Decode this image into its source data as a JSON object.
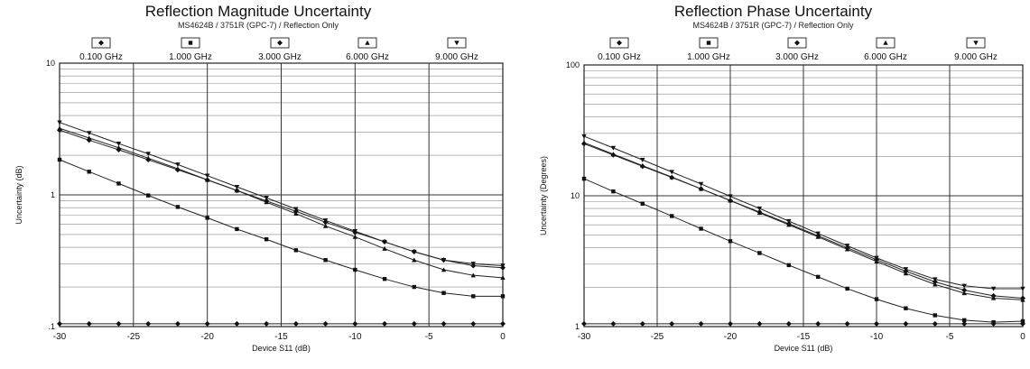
{
  "chart_data": [
    {
      "type": "line",
      "title": "Reflection Magnitude Uncertainty",
      "subtitle": "MS4624B / 3751R (GPC-7) / Reflection Only",
      "xlabel": "Device S11 (dB)",
      "ylabel": "Uncertainty (dB)",
      "xlim": [
        -30,
        0
      ],
      "ylim": [
        0.1,
        10
      ],
      "yscale": "log",
      "grid": true,
      "legend_position": "top",
      "xticks": [
        "-30",
        "-25",
        "-20",
        "-15",
        "-10",
        "-5",
        "0"
      ],
      "yticks": [
        ".1",
        "1",
        "10"
      ],
      "x": [
        -30,
        -28,
        -26,
        -24,
        -22,
        -20,
        -18,
        -16,
        -14,
        -12,
        -10,
        -8,
        -6,
        -4,
        -2,
        0
      ],
      "series": [
        {
          "name": "0.100 GHz",
          "marker": "diamond",
          "values": [
            0.105,
            0.105,
            0.105,
            0.105,
            0.105,
            0.105,
            0.105,
            0.105,
            0.105,
            0.105,
            0.105,
            0.105,
            0.105,
            0.105,
            0.105,
            0.105
          ]
        },
        {
          "name": "1.000 GHz",
          "marker": "square",
          "values": [
            1.85,
            1.5,
            1.22,
            0.99,
            0.81,
            0.67,
            0.55,
            0.46,
            0.38,
            0.32,
            0.27,
            0.23,
            0.2,
            0.18,
            0.17,
            0.17
          ]
        },
        {
          "name": "3.000 GHz",
          "marker": "diamond",
          "values": [
            3.1,
            2.6,
            2.2,
            1.85,
            1.55,
            1.3,
            1.08,
            0.9,
            0.75,
            0.62,
            0.52,
            0.44,
            0.37,
            0.32,
            0.29,
            0.28
          ]
        },
        {
          "name": "6.000 GHz",
          "marker": "triangle-up",
          "values": [
            3.2,
            2.7,
            2.28,
            1.9,
            1.58,
            1.3,
            1.08,
            0.88,
            0.72,
            0.58,
            0.48,
            0.39,
            0.32,
            0.27,
            0.245,
            0.235
          ]
        },
        {
          "name": "9.000 GHz",
          "marker": "triangle-down",
          "values": [
            3.55,
            2.95,
            2.45,
            2.05,
            1.7,
            1.4,
            1.15,
            0.95,
            0.78,
            0.64,
            0.53,
            0.44,
            0.37,
            0.32,
            0.3,
            0.29
          ]
        }
      ]
    },
    {
      "type": "line",
      "title": "Reflection Phase Uncertainty",
      "subtitle": "MS4624B / 3751R (GPC-7) / Reflection Only",
      "xlabel": "Device S11 (dB)",
      "ylabel": "Uncertainty (Degrees)",
      "xlim": [
        -30,
        0
      ],
      "ylim": [
        1,
        100
      ],
      "yscale": "log",
      "grid": true,
      "legend_position": "top",
      "xticks": [
        "-30",
        "-25",
        "-20",
        "-15",
        "-10",
        "-5",
        "0"
      ],
      "yticks": [
        "1",
        "10",
        "100"
      ],
      "x": [
        -30,
        -28,
        -26,
        -24,
        -22,
        -20,
        -18,
        -16,
        -14,
        -12,
        -10,
        -8,
        -6,
        -4,
        -2,
        0
      ],
      "series": [
        {
          "name": "0.100 GHz",
          "marker": "diamond",
          "values": [
            1.05,
            1.05,
            1.05,
            1.05,
            1.05,
            1.05,
            1.05,
            1.05,
            1.05,
            1.05,
            1.05,
            1.05,
            1.05,
            1.05,
            1.05,
            1.05
          ]
        },
        {
          "name": "1.000 GHz",
          "marker": "square",
          "values": [
            13.5,
            10.8,
            8.7,
            7.0,
            5.6,
            4.5,
            3.65,
            2.95,
            2.4,
            1.95,
            1.62,
            1.38,
            1.22,
            1.12,
            1.08,
            1.1
          ]
        },
        {
          "name": "3.000 GHz",
          "marker": "diamond",
          "values": [
            25,
            20.5,
            16.8,
            13.8,
            11.3,
            9.2,
            7.5,
            6.1,
            4.95,
            4.0,
            3.25,
            2.65,
            2.2,
            1.9,
            1.72,
            1.65
          ]
        },
        {
          "name": "6.000 GHz",
          "marker": "triangle-up",
          "values": [
            25.5,
            20.8,
            17.0,
            13.9,
            11.3,
            9.2,
            7.4,
            6.0,
            4.85,
            3.9,
            3.15,
            2.55,
            2.1,
            1.8,
            1.65,
            1.6
          ]
        },
        {
          "name": "9.000 GHz",
          "marker": "triangle-down",
          "values": [
            28.5,
            23.2,
            18.8,
            15.2,
            12.3,
            9.9,
            8.0,
            6.4,
            5.15,
            4.15,
            3.35,
            2.75,
            2.3,
            2.05,
            1.95,
            1.95
          ]
        }
      ]
    }
  ]
}
